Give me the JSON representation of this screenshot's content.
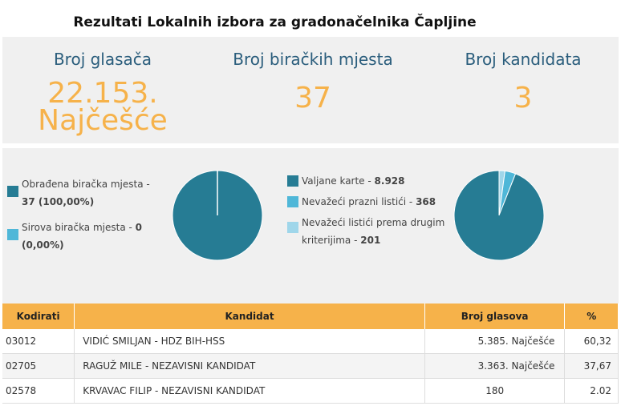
{
  "page": {
    "title": "Rezultati Lokalnih izbora za gradonačelnika Čapljine"
  },
  "stats": [
    {
      "label": "Broj glasača",
      "value_line1": "22.153.",
      "value_line2": "Najčešće"
    },
    {
      "label": "Broj biračkih mjesta",
      "value": "37"
    },
    {
      "label": "Broj kandidata",
      "value": "3"
    }
  ],
  "colors": {
    "accent": "#f6b24a",
    "teal": "#267c94",
    "light_blue": "#4fb7d8",
    "pale_blue": "#9fd6ea"
  },
  "polling_stations": {
    "processed_label": "Obrađena biračka mjesta -",
    "processed_value": "37 (100,00%)",
    "raw_label": "Sirova biračka mjesta -",
    "raw_value_a": "0",
    "raw_value_b": "(0,00%)",
    "chart_data": {
      "type": "pie",
      "categories": [
        "Obrađena biračka mjesta",
        "Sirova biračka mjesta"
      ],
      "values": [
        37,
        0
      ]
    }
  },
  "ballots": {
    "valid_label": "Valjane karte -",
    "valid_value": "8.928",
    "empty_label": "Nevažeći prazni listići -",
    "empty_value": "368",
    "other_label_1": "Nevažeći listići prema drugim",
    "other_label_2": "kriterijima -",
    "other_value": "201",
    "chart_data": {
      "type": "pie",
      "categories": [
        "Valjane karte",
        "Nevažeći prazni listići",
        "Nevažeći listići prema drugim kriterijima"
      ],
      "values": [
        8928,
        368,
        201
      ]
    }
  },
  "table": {
    "headers": [
      "Kodirati",
      "Kandidat",
      "Broj glasova",
      "%"
    ],
    "rows": [
      {
        "code": "03012",
        "candidate": "VIDIĆ SMILJAN - HDZ BIH-HSS",
        "votes": "5.385. Najčešće",
        "pct": "60,32"
      },
      {
        "code": "02705",
        "candidate": "RAGUŽ MILE - NEZAVISNI KANDIDAT",
        "votes": "3.363. Najčešće",
        "pct": "37,67"
      },
      {
        "code": "02578",
        "candidate": "KRVAVAC FILIP - NEZAVISNI KANDIDAT",
        "votes": "180",
        "pct": "2.02"
      }
    ]
  }
}
